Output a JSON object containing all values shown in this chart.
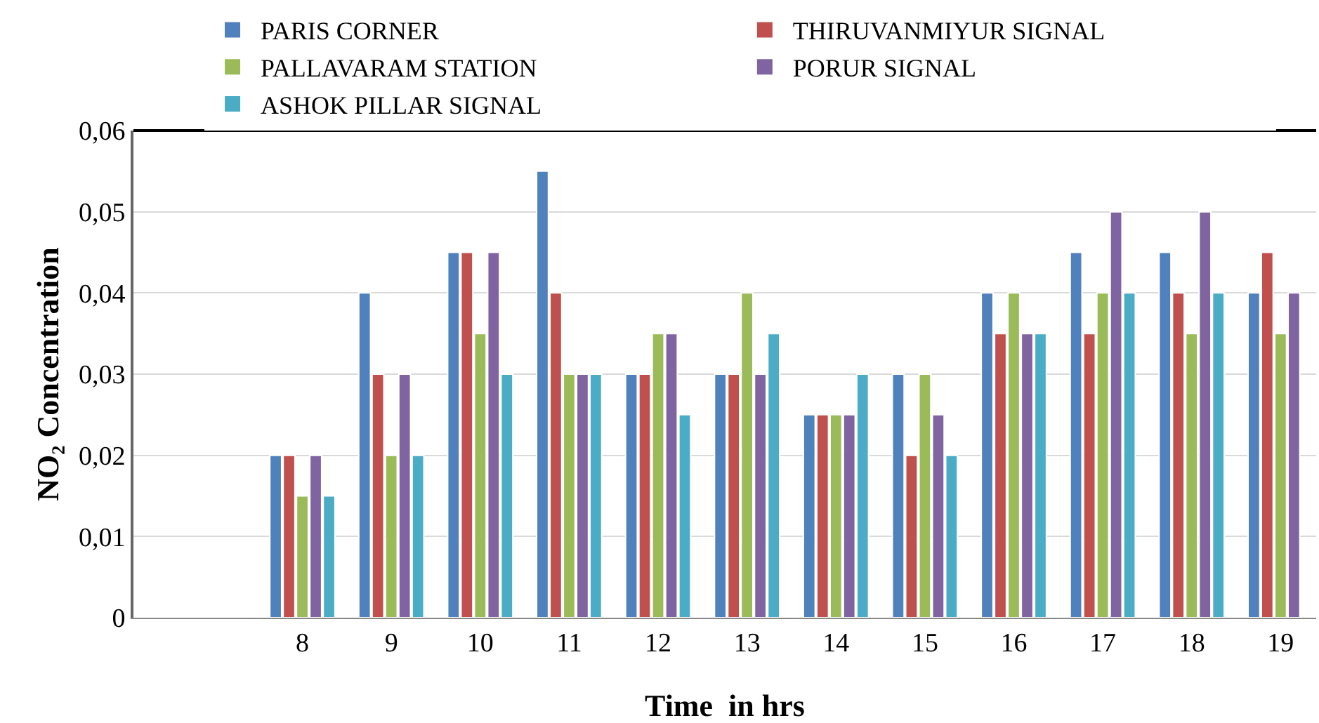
{
  "chart_data": {
    "type": "bar",
    "xlabel": "Time  in hrs",
    "ylabel": "NO₂ Concentration",
    "categories": [
      null,
      "8",
      "9",
      "10",
      "11",
      "12",
      "13",
      "14",
      "15",
      "16",
      "17",
      "18",
      "19"
    ],
    "series": [
      {
        "name": "PARIS CORNER",
        "color": "#4f81bd",
        "values": [
          null,
          0.02,
          0.04,
          0.045,
          0.055,
          0.03,
          0.03,
          0.025,
          0.03,
          0.04,
          0.045,
          0.045,
          0.04
        ]
      },
      {
        "name": "THIRUVANMIYUR SIGNAL",
        "color": "#c0504d",
        "values": [
          null,
          0.02,
          0.03,
          0.045,
          0.04,
          0.03,
          0.03,
          0.025,
          0.02,
          0.035,
          0.035,
          0.04,
          0.045
        ]
      },
      {
        "name": "PALLAVARAM STATION",
        "color": "#9bbb59",
        "values": [
          null,
          0.015,
          0.02,
          0.035,
          0.03,
          0.035,
          0.04,
          0.025,
          0.03,
          0.04,
          0.04,
          0.035,
          0.035
        ]
      },
      {
        "name": "PORUR SIGNAL",
        "color": "#8064a2",
        "values": [
          null,
          0.02,
          0.03,
          0.045,
          0.03,
          0.035,
          0.03,
          0.025,
          0.025,
          0.035,
          0.05,
          0.05,
          0.04
        ]
      },
      {
        "name": "ASHOK PILLAR SIGNAL",
        "color": "#4bacc6",
        "values": [
          null,
          0.015,
          0.02,
          0.03,
          0.03,
          0.025,
          0.035,
          0.03,
          0.02,
          0.035,
          0.04,
          0.04,
          null
        ]
      }
    ],
    "ylim": [
      0,
      0.06
    ],
    "yticks": [
      0,
      {
        "value": 0.01,
        "label": "0,01"
      },
      {
        "value": 0.02,
        "label": "0,02"
      },
      {
        "value": 0.03,
        "label": "0,03"
      },
      {
        "value": 0.04,
        "label": "0,04"
      },
      {
        "value": 0.05,
        "label": "0,05"
      },
      {
        "value": 0.06,
        "label": "0,06"
      }
    ],
    "grid": "y",
    "legend": "top"
  }
}
